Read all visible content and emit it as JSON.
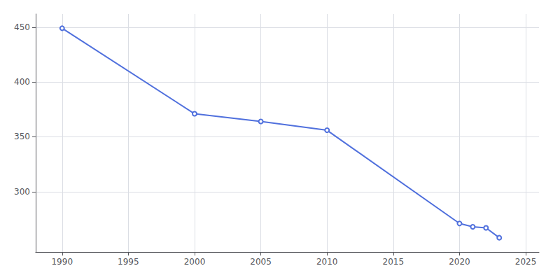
{
  "chart_data": {
    "type": "line",
    "x": [
      1990,
      2000,
      2005,
      2010,
      2020,
      2021,
      2022,
      2023
    ],
    "values": [
      449,
      371,
      364,
      356,
      271,
      268,
      267,
      258
    ],
    "xlim": [
      1988,
      2026
    ],
    "ylim": [
      245,
      462
    ],
    "xticks": [
      1990,
      1995,
      2000,
      2005,
      2010,
      2015,
      2020,
      2025
    ],
    "yticks": [
      300,
      350,
      400,
      450
    ],
    "grid": true
  }
}
